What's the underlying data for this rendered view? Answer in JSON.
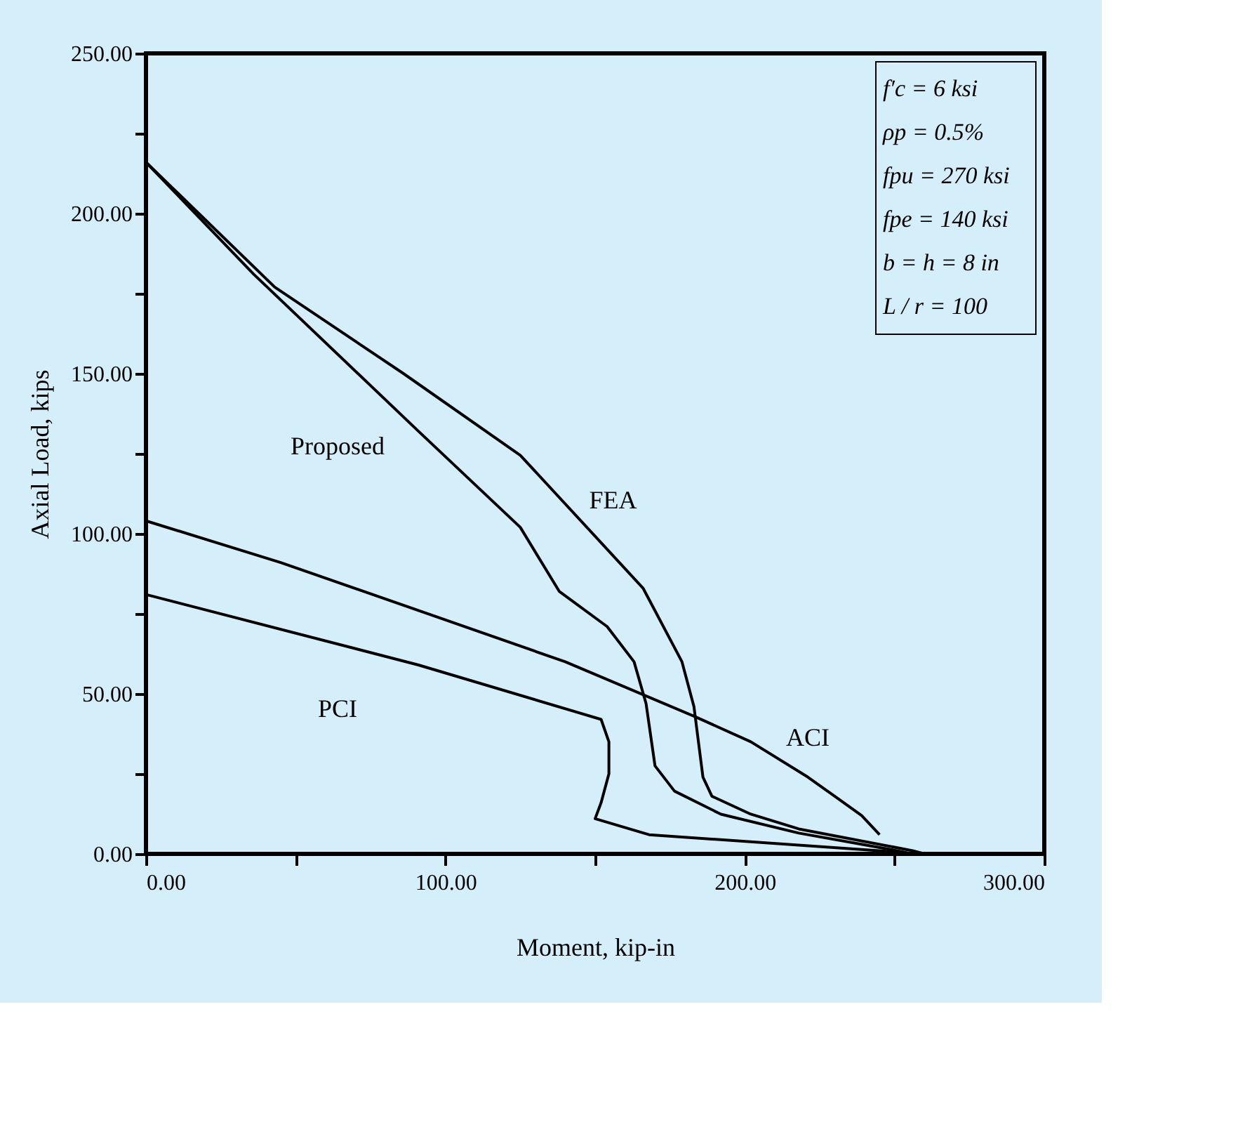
{
  "chart_data": {
    "type": "line",
    "xlabel": "Moment, kip-in",
    "ylabel": "Axial Load, kips",
    "series": [
      {
        "name": "Proposed",
        "color": "#000000",
        "x": [
          0,
          36,
          91,
          125,
          138,
          154,
          163,
          167,
          170,
          176.5,
          192,
          218,
          249,
          256
        ],
        "values": [
          216,
          181,
          132,
          102,
          82,
          71,
          60,
          47,
          27.5,
          19.6,
          12.4,
          6.5,
          1.3,
          0
        ]
      },
      {
        "name": "FEA",
        "color": "#000000",
        "x": [
          0,
          43,
          86,
          125,
          166,
          179,
          183,
          186,
          189,
          202,
          218,
          256,
          260
        ],
        "values": [
          216,
          177,
          150,
          124.5,
          83,
          60,
          46,
          24,
          18,
          12.4,
          7.8,
          1,
          0
        ]
      },
      {
        "name": "ACI",
        "color": "#000000",
        "x": [
          0,
          45,
          91,
          140,
          183,
          202,
          221,
          230,
          239,
          245
        ],
        "values": [
          104,
          91,
          76,
          60,
          43,
          35,
          24,
          18,
          12,
          6
        ]
      },
      {
        "name": "PCI",
        "color": "#000000",
        "x": [
          0,
          91,
          152,
          154.6,
          154.6,
          152,
          150,
          168,
          249,
          256
        ],
        "values": [
          81,
          59,
          42,
          35,
          25,
          16,
          11,
          6,
          0.7,
          0
        ]
      }
    ],
    "xlim": [
      0,
      300
    ],
    "ylim": [
      0,
      250
    ],
    "xticks": [
      {
        "value": 0,
        "label": "0.00"
      },
      {
        "value": 50,
        "label": null
      },
      {
        "value": 100,
        "label": "100.00"
      },
      {
        "value": 150,
        "label": null
      },
      {
        "value": 200,
        "label": "200.00"
      },
      {
        "value": 250,
        "label": null
      },
      {
        "value": 300,
        "label": "300.00"
      }
    ],
    "yticks": [
      {
        "value": 0,
        "label": "0.00"
      },
      {
        "value": 25,
        "label": null
      },
      {
        "value": 50,
        "label": "50.00"
      },
      {
        "value": 75,
        "label": null
      },
      {
        "value": 100,
        "label": "100.00"
      },
      {
        "value": 125,
        "label": null
      },
      {
        "value": 150,
        "label": "150.00"
      },
      {
        "value": 175,
        "label": null
      },
      {
        "value": 200,
        "label": "200.00"
      },
      {
        "value": 225,
        "label": null
      },
      {
        "value": 250,
        "label": "250.00"
      }
    ],
    "annotations": [
      "f′c = 6 ksi",
      "ρp = 0.5%",
      "fpu = 270 ksi",
      "fpe = 140 ksi",
      "b = h = 8 in",
      "L / r = 100"
    ],
    "grid": false,
    "legend": false,
    "marker": "none",
    "line_style": "solid"
  }
}
